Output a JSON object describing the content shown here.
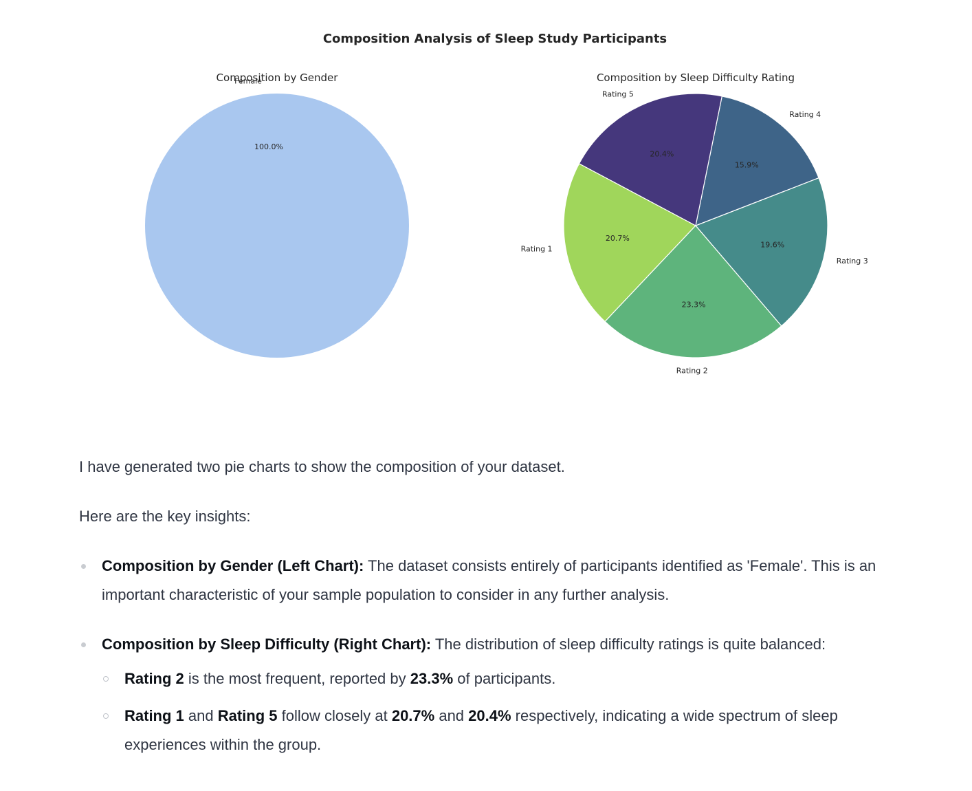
{
  "figure_title": "Composition Analysis of Sleep Study Participants",
  "chart_data": [
    {
      "type": "pie",
      "title": "Composition by Gender",
      "labels": [
        "Female"
      ],
      "values": [
        100.0
      ],
      "percent_labels": [
        "100.0%"
      ],
      "colors": [
        "#a9c7ef"
      ]
    },
    {
      "type": "pie",
      "title": "Composition by Sleep Difficulty Rating",
      "labels": [
        "Rating 1",
        "Rating 2",
        "Rating 3",
        "Rating 4",
        "Rating 5"
      ],
      "values": [
        20.7,
        23.3,
        19.6,
        15.9,
        20.4
      ],
      "percent_labels": [
        "20.7%",
        "23.3%",
        "19.6%",
        "15.9%",
        "20.4%"
      ],
      "colors": [
        "#a0d65b",
        "#5eb47c",
        "#458b8a",
        "#3e6488",
        "#45377c"
      ]
    }
  ],
  "text": {
    "intro": "I have generated two pie charts to show the composition of your dataset.",
    "insights_heading": "Here are the key insights:",
    "bullet1_bold": "Composition by Gender (Left Chart):",
    "bullet1_text": " The dataset consists entirely of participants identified as 'Female'. This is an important characteristic of your sample population to consider in any further analysis.",
    "bullet2_bold": "Composition by Sleep Difficulty (Right Chart):",
    "bullet2_text": " The distribution of sleep difficulty ratings is quite balanced:",
    "sub1_b1": "Rating 2",
    "sub1_t1": " is the most frequent, reported by ",
    "sub1_b2": "23.3%",
    "sub1_t2": " of participants.",
    "sub2_b1": "Rating 1",
    "sub2_t1": " and ",
    "sub2_b2": "Rating 5",
    "sub2_t2": " follow closely at ",
    "sub2_b3": "20.7%",
    "sub2_t3": " and ",
    "sub2_b4": "20.4%",
    "sub2_t4": " respectively, indicating a wide spectrum of sleep experiences within the group."
  }
}
